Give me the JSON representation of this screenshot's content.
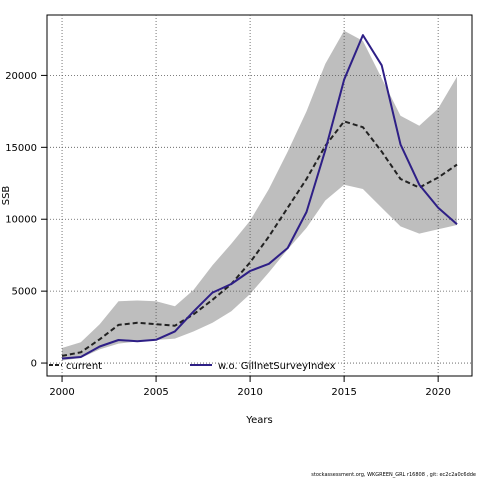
{
  "chart_data": {
    "type": "line",
    "title": "",
    "xlabel": "Years",
    "ylabel": "SSB",
    "xlim": [
      1999.2,
      2021.8
    ],
    "ylim": [
      -900,
      24200
    ],
    "xticks": [
      2000,
      2005,
      2010,
      2015,
      2020
    ],
    "yticks": [
      0,
      5000,
      10000,
      15000,
      20000
    ],
    "grid": true,
    "legend_position": "bottom",
    "x": [
      2000,
      2001,
      2002,
      2003,
      2004,
      2005,
      2006,
      2007,
      2008,
      2009,
      2010,
      2011,
      2012,
      2013,
      2014,
      2015,
      2016,
      2017,
      2018,
      2019,
      2020,
      2021
    ],
    "band": {
      "color": "#bebebe",
      "upper": [
        1050,
        1450,
        2700,
        4300,
        4350,
        4300,
        3950,
        5100,
        6800,
        8300,
        9900,
        12100,
        14700,
        17500,
        20800,
        23100,
        22400,
        19800,
        17200,
        16500,
        17700,
        19900
      ],
      "lower": [
        180,
        350,
        950,
        1350,
        1500,
        1600,
        1700,
        2200,
        2800,
        3600,
        4800,
        6300,
        7900,
        9400,
        11300,
        12400,
        12100,
        10800,
        9500,
        9000,
        9300,
        9600
      ]
    },
    "series": [
      {
        "name": "current",
        "color": "#222222",
        "style": "dashed",
        "values": [
          500,
          750,
          1650,
          2650,
          2800,
          2700,
          2600,
          3400,
          4400,
          5500,
          7000,
          8800,
          10800,
          12800,
          15100,
          16800,
          16400,
          14700,
          12800,
          12200,
          12900,
          13800
        ]
      },
      {
        "name": "w.o. GillnetSurveyIndex",
        "color": "#2e1f86",
        "style": "solid",
        "values": [
          320,
          420,
          1150,
          1600,
          1520,
          1620,
          2200,
          3600,
          4900,
          5500,
          6400,
          6900,
          8000,
          10500,
          14800,
          19700,
          22800,
          20700,
          15200,
          12400,
          10800,
          9650
        ]
      }
    ]
  },
  "footer": {
    "text": "stockassessment.org, WKGREEN_GRL r16808 ,  git: ec2c2a0c6dde"
  }
}
